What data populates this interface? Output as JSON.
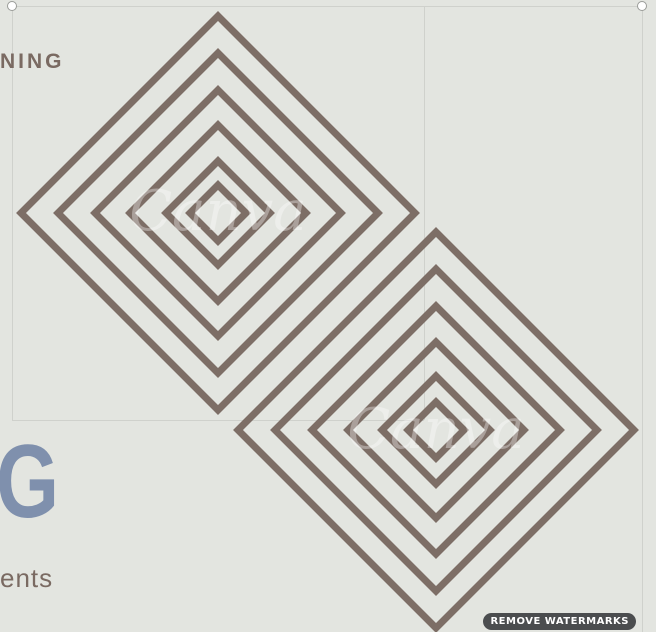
{
  "canvas": {
    "heading_partial": "NING",
    "big_letter_partial": "G",
    "subtext_partial": "ents"
  },
  "diamonds": {
    "stroke_color": "#7d6e66",
    "watermark_text": "Canva"
  },
  "watermark_button": {
    "label": "REMOVE WATERMARKS"
  },
  "colors": {
    "background": "#e3e5e0",
    "heading": "#7a6a62",
    "big_letter": "#7f90ad"
  }
}
